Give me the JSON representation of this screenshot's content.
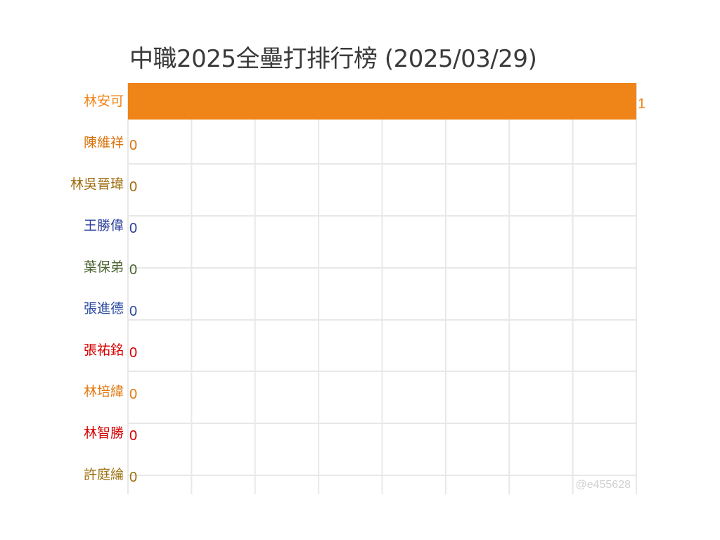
{
  "chart_data": {
    "type": "bar",
    "orientation": "horizontal",
    "title": "中職2025全壘打排行榜 (2025/03/29)",
    "categories": [
      "林安可",
      "陳維祥",
      "林吳晉瑋",
      "王勝偉",
      "葉保弟",
      "張進德",
      "張祐銘",
      "林培緯",
      "林智勝",
      "許庭綸"
    ],
    "values": [
      1,
      0,
      0,
      0,
      0,
      0,
      0,
      0,
      0,
      0
    ],
    "colors": [
      "#ef8419",
      "#d9730d",
      "#9c6b0e",
      "#2a3f9a",
      "#4b6330",
      "#2a4aa0",
      "#d60000",
      "#e07a10",
      "#d40000",
      "#9c7010"
    ],
    "xlim": [
      0,
      1
    ],
    "grid": true,
    "xlabel": "",
    "ylabel": "",
    "watermark": "@e455628"
  }
}
